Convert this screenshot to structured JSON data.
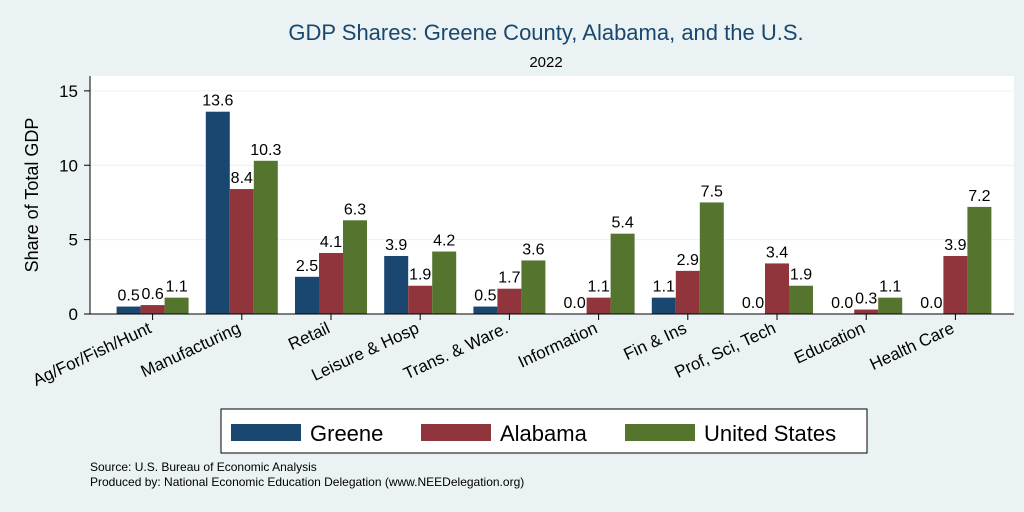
{
  "chart_data": {
    "type": "bar",
    "title": "GDP Shares: Greene County, Alabama, and the U.S.",
    "subtitle": "2022",
    "ylabel": "Share of Total GDP",
    "xlabel": "",
    "ylim": [
      0,
      16
    ],
    "yticks": [
      0,
      5,
      10,
      15
    ],
    "grid": true,
    "legend_position": "bottom",
    "categories": [
      "Ag/For/Fish/Hunt",
      "Manufacturing",
      "Retail",
      "Leisure & Hosp",
      "Trans. & Ware.",
      "Information",
      "Fin & Ins",
      "Prof, Sci, Tech",
      "Education",
      "Health Care"
    ],
    "series": [
      {
        "name": "Greene",
        "color": "#1a476f",
        "values": [
          0.5,
          13.6,
          2.5,
          3.9,
          0.5,
          0.0,
          1.1,
          0.0,
          0.0,
          0.0
        ]
      },
      {
        "name": "Alabama",
        "color": "#90353b",
        "values": [
          0.6,
          8.4,
          4.1,
          1.9,
          1.7,
          1.1,
          2.9,
          3.4,
          0.3,
          3.9
        ]
      },
      {
        "name": "United States",
        "color": "#55752f",
        "values": [
          1.1,
          10.3,
          6.3,
          4.2,
          3.6,
          5.4,
          7.5,
          1.9,
          1.1,
          7.2
        ]
      }
    ],
    "value_labels": [
      [
        "0.5",
        "13.6",
        "2.5",
        "3.9",
        "0.5",
        "0.0",
        "1.1",
        "0.0",
        "0.0",
        "0.0"
      ],
      [
        "0.6",
        "8.4",
        "4.1",
        "1.9",
        "1.7",
        "1.1",
        "2.9",
        "3.4",
        "0.3",
        "3.9"
      ],
      [
        "1.1",
        "10.3",
        "6.3",
        "4.2",
        "3.6",
        "5.4",
        "7.5",
        "1.9",
        "1.1",
        "7.2"
      ]
    ]
  },
  "footer": {
    "source": "Source: U.S. Bureau of Economic Analysis",
    "produced_by": "Produced by: National Economic Education Delegation (www.NEEDelegation.org)"
  }
}
